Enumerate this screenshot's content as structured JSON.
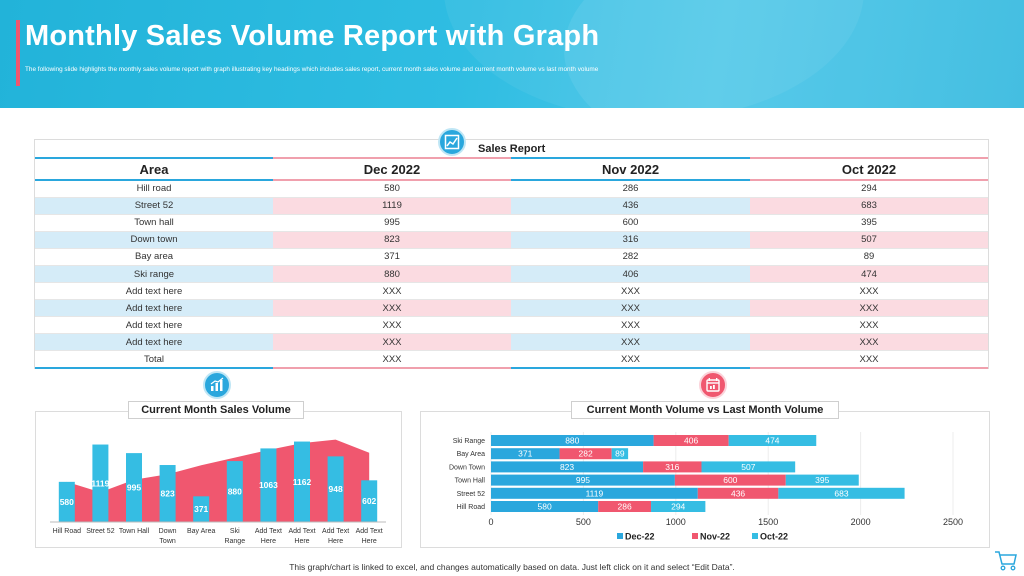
{
  "header": {
    "title": "Monthly Sales Volume Report with Graph",
    "subtitle": "The following slide highlights the monthly sales volume report with graph illustrating key headings which includes sales report, current month sales volume and current month volume vs last month volume"
  },
  "table": {
    "title": "Sales Report",
    "columns": [
      "Area",
      "Dec 2022",
      "Nov 2022",
      "Oct 2022"
    ],
    "rows": [
      [
        "Hill road",
        "580",
        "286",
        "294"
      ],
      [
        "Street 52",
        "1119",
        "436",
        "683"
      ],
      [
        "Town hall",
        "995",
        "600",
        "395"
      ],
      [
        "Down town",
        "823",
        "316",
        "507"
      ],
      [
        "Bay area",
        "371",
        "282",
        "89"
      ],
      [
        "Ski range",
        "880",
        "406",
        "474"
      ],
      [
        "Add text here",
        "XXX",
        "XXX",
        "XXX"
      ],
      [
        "Add text here",
        "XXX",
        "XXX",
        "XXX"
      ],
      [
        "Add text here",
        "XXX",
        "XXX",
        "XXX"
      ],
      [
        "Add text here",
        "XXX",
        "XXX",
        "XXX"
      ],
      [
        "Total",
        "XXX",
        "XXX",
        "XXX"
      ]
    ]
  },
  "footer": {
    "note": "This graph/chart is linked to excel, and changes automatically based on data. Just left click on it and select “Edit Data”."
  },
  "colors": {
    "blue": "#2aa7dd",
    "pink": "#f0576f",
    "cyan": "#35bde3"
  },
  "icons": [
    "table-chart-icon",
    "bar-growth-icon",
    "calendar-chart-icon",
    "shopping-cart-icon"
  ],
  "chart_data": [
    {
      "type": "bar",
      "title": "Current Month Sales Volume",
      "categories": [
        "Hill Road",
        "Street 52",
        "Town Hall",
        "Down Town",
        "Bay Area",
        "Ski Range",
        "Add Text Here",
        "Add Text Here",
        "Add Text Here",
        "Add Text Here"
      ],
      "category_lines": [
        [
          "Hill Road"
        ],
        [
          "Street 52"
        ],
        [
          "Town Hall"
        ],
        [
          "Down",
          "Town"
        ],
        [
          "Bay Area"
        ],
        [
          "Ski",
          "Range"
        ],
        [
          "Add Text",
          "Here"
        ],
        [
          "Add Text",
          "Here"
        ],
        [
          "Add Text",
          "Here"
        ],
        [
          "Add Text",
          "Here"
        ]
      ],
      "values": [
        580,
        1119,
        995,
        823,
        371,
        880,
        1063,
        1162,
        948,
        602
      ],
      "area_values": [
        580,
        430,
        610,
        690,
        820,
        930,
        1040,
        1140,
        1190,
        1000
      ],
      "ylim": [
        0,
        1300
      ],
      "colors": {
        "bars": "#35bde3",
        "area": "#f0576f"
      }
    },
    {
      "type": "bar",
      "orientation": "horizontal-stacked",
      "title": "Current Month Volume vs Last Month Volume",
      "categories": [
        "Ski Range",
        "Bay Area",
        "Down Town",
        "Town Hall",
        "Street 52",
        "Hill Road"
      ],
      "series": [
        {
          "name": "Dec-22",
          "color": "#2aa7dd",
          "values": [
            880,
            371,
            823,
            995,
            1119,
            580
          ]
        },
        {
          "name": "Nov-22",
          "color": "#f0576f",
          "values": [
            406,
            282,
            316,
            600,
            436,
            286
          ]
        },
        {
          "name": "Oct-22",
          "color": "#35bde3",
          "values": [
            474,
            89,
            507,
            395,
            683,
            294
          ]
        }
      ],
      "xticks": [
        0,
        500,
        1000,
        1500,
        2000,
        2500
      ],
      "xlim": [
        0,
        2500
      ],
      "legend": "bottom"
    }
  ]
}
